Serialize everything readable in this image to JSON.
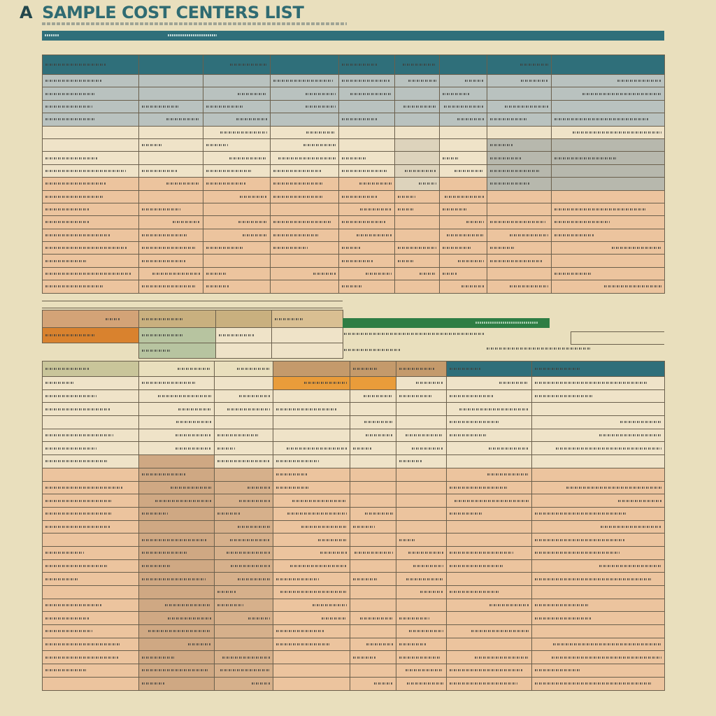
{
  "page": {
    "title_letter": "A",
    "title_text": "SAMPLE COST CENTERS LIST"
  },
  "colors": {
    "background": "#e9dfbd",
    "header_teal": "#2f6f7a",
    "row_blue_gray": "#b9c2bf",
    "row_peach": "#ecc49e",
    "row_cream": "#efe3c8",
    "accent_orange": "#d9822e",
    "accent_green": "#2e7d44",
    "accent_olive": "#c9c59a"
  },
  "table_top": {
    "columns": 9,
    "rows": 18
  },
  "table_bottom": {
    "columns": 8,
    "rows": 25
  }
}
